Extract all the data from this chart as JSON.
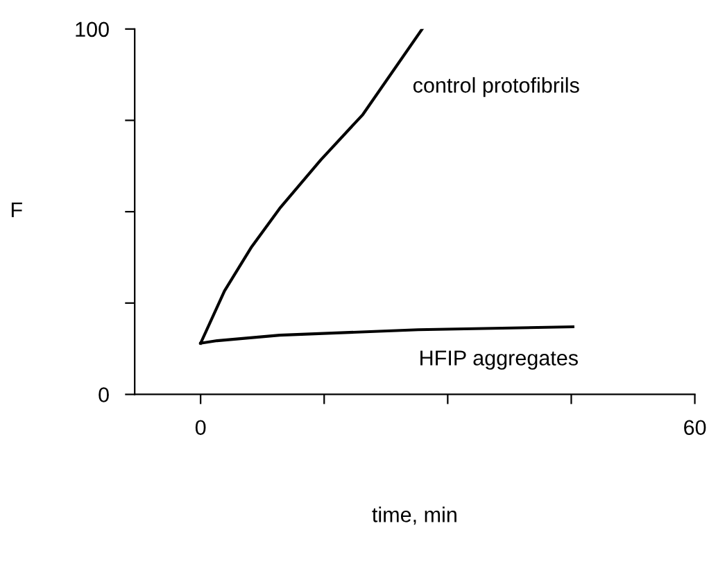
{
  "chart_data": {
    "type": "line",
    "xlabel": "time, min",
    "ylabel": "F",
    "xlim": [
      -8,
      60
    ],
    "ylim": [
      0,
      100
    ],
    "xticks": [
      0,
      {
        "value": 15,
        "label": null
      },
      {
        "value": 30,
        "label": null
      },
      {
        "value": 45,
        "label": null
      },
      60
    ],
    "yticks": [
      0,
      {
        "value": 25,
        "label": null
      },
      {
        "value": 50,
        "label": null
      },
      {
        "value": 75,
        "label": null
      },
      100
    ],
    "grid": false,
    "legend": false,
    "marker": "none",
    "line_style": "solid",
    "series": [
      {
        "name": "control protofibrils",
        "color": "#000000",
        "x": [
          0,
          2.9,
          6.2,
          9.6,
          14.6,
          19.7,
          26.9
        ],
        "values": [
          14,
          28.3,
          40.4,
          50.9,
          64.2,
          76.6,
          100
        ]
      },
      {
        "name": "HFIP aggregates",
        "color": "#000000",
        "x": [
          0,
          2,
          9.6,
          26.4,
          45.2
        ],
        "values": [
          14,
          14.7,
          16.2,
          17.7,
          18.5
        ]
      }
    ]
  }
}
